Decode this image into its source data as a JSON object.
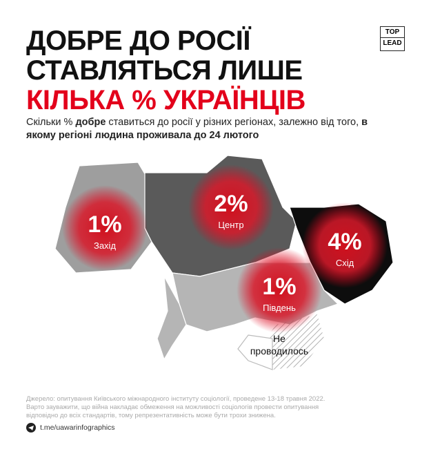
{
  "header": {
    "title_lines": [
      "ДОБРЕ ДО РОСІЇ",
      "СТАВЛЯТЬСЯ ЛИШЕ",
      "КІЛЬКА % УКРАЇНЦІВ"
    ],
    "logo": [
      "TOP",
      "LEAD"
    ]
  },
  "subtitle": [
    "Скільки % ",
    "добре",
    " ставиться до росії у різних регіонах, залежно від того, ",
    "в якому регіоні людина проживала до 24 лютого"
  ],
  "regions": [
    {
      "value": "1%",
      "name": "Захід"
    },
    {
      "value": "2%",
      "name": "Центр"
    },
    {
      "value": "4%",
      "name": "Схід"
    },
    {
      "value": "1%",
      "name": "Південь"
    }
  ],
  "not_surveyed": [
    "Не",
    "проводилось"
  ],
  "footer": {
    "source": [
      "Джерело: опитування Київського міжнародного інституту соціології, проведене 13-18 травня 2022.",
      "Варто зауважити, що війна накладає обмеження на можливості соціологів провести опитування",
      "відповідно до всіх стандартів, тому репрезентативність може бути трохи знижена."
    ],
    "link": "t.me/uawarinfographics"
  }
}
